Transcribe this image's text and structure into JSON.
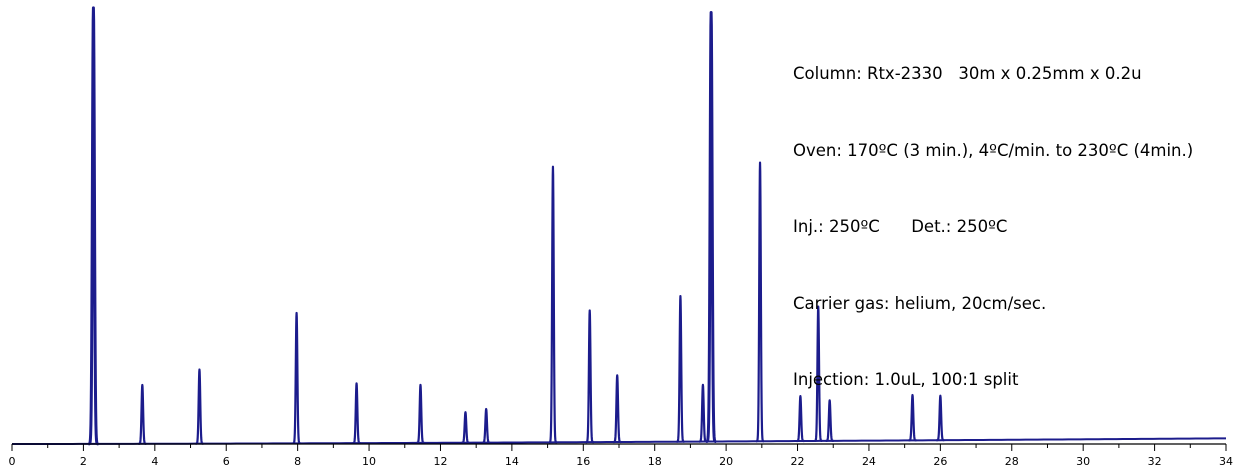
{
  "conditions": {
    "line1": "Column: Rtx-2330   30m x 0.25mm x 0.2u",
    "line2": "Oven: 170ºC (3 min.), 4ºC/min. to 230ºC (4min.)",
    "line3": "Inj.: 250ºC      Det.: 250ºC",
    "line4": "Carrier gas: helium, 20cm/sec.",
    "line5": "Injection: 1.0uL, 100:1 split"
  },
  "colors": {
    "trace": "#1c1c8c",
    "axis": "#000000"
  },
  "chart_data": {
    "type": "line",
    "title": "",
    "xlabel": "",
    "ylabel": "",
    "xlim": [
      0,
      34
    ],
    "ylim": [
      0,
      100
    ],
    "x_ticks": [
      "0",
      "2",
      "4",
      "6",
      "8",
      "10",
      "12",
      "14",
      "16",
      "18",
      "20",
      "22",
      "24",
      "26",
      "28",
      "30",
      "32",
      "34"
    ],
    "grid": false,
    "baseline": {
      "start": 0,
      "end": 1.3
    },
    "peaks": [
      {
        "rt": 2.28,
        "height": 100
      },
      {
        "rt": 3.65,
        "height": 13.5
      },
      {
        "rt": 5.25,
        "height": 17.0
      },
      {
        "rt": 7.97,
        "height": 29.9
      },
      {
        "rt": 9.65,
        "height": 13.7
      },
      {
        "rt": 11.44,
        "height": 13.3
      },
      {
        "rt": 12.7,
        "height": 7.0
      },
      {
        "rt": 13.28,
        "height": 7.7
      },
      {
        "rt": 15.15,
        "height": 63.2
      },
      {
        "rt": 16.18,
        "height": 30.2
      },
      {
        "rt": 16.95,
        "height": 15.3
      },
      {
        "rt": 18.72,
        "height": 33.4
      },
      {
        "rt": 19.35,
        "height": 13.0
      },
      {
        "rt": 19.58,
        "height": 98.4
      },
      {
        "rt": 20.95,
        "height": 63.9
      },
      {
        "rt": 22.08,
        "height": 10.3
      },
      {
        "rt": 22.58,
        "height": 30.8
      },
      {
        "rt": 22.9,
        "height": 9.3
      },
      {
        "rt": 25.22,
        "height": 10.4
      },
      {
        "rt": 26.0,
        "height": 10.2
      }
    ]
  }
}
